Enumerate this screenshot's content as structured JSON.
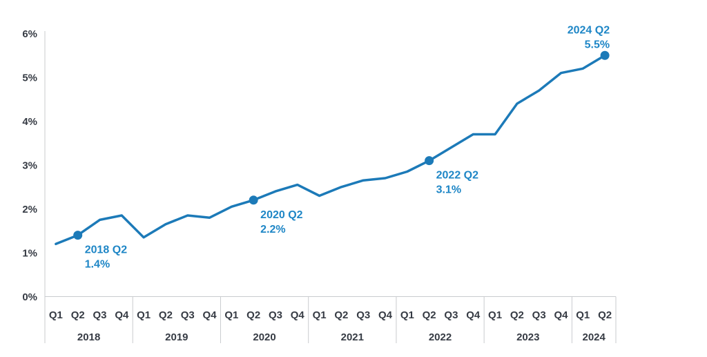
{
  "chart_data": {
    "type": "line",
    "title": "",
    "xlabel": "",
    "ylabel": "",
    "ylim": [
      0,
      6
    ],
    "grid": false,
    "legend_position": "none",
    "y_tick_labels": [
      "0%",
      "1%",
      "2%",
      "3%",
      "4%",
      "5%",
      "6%"
    ],
    "years": [
      {
        "label": "2018",
        "quarters": [
          "Q1",
          "Q2",
          "Q3",
          "Q4"
        ],
        "values": [
          1.2,
          1.4,
          1.75,
          1.85
        ]
      },
      {
        "label": "2019",
        "quarters": [
          "Q1",
          "Q2",
          "Q3",
          "Q4"
        ],
        "values": [
          1.35,
          1.65,
          1.85,
          1.8
        ]
      },
      {
        "label": "2020",
        "quarters": [
          "Q1",
          "Q2",
          "Q3",
          "Q4"
        ],
        "values": [
          2.05,
          2.2,
          2.4,
          2.55
        ]
      },
      {
        "label": "2021",
        "quarters": [
          "Q1",
          "Q2",
          "Q3",
          "Q4"
        ],
        "values": [
          2.3,
          2.5,
          2.65,
          2.7
        ]
      },
      {
        "label": "2022",
        "quarters": [
          "Q1",
          "Q2",
          "Q3",
          "Q4"
        ],
        "values": [
          2.85,
          3.1,
          3.4,
          3.7
        ]
      },
      {
        "label": "2023",
        "quarters": [
          "Q1",
          "Q2",
          "Q3",
          "Q4"
        ],
        "values": [
          3.7,
          4.4,
          4.7,
          5.1
        ]
      },
      {
        "label": "2024",
        "quarters": [
          "Q1",
          "Q2"
        ],
        "values": [
          5.2,
          5.5
        ]
      }
    ],
    "annotations": [
      {
        "point_index": 1,
        "line1": "2018 Q2",
        "line2": "1.4%",
        "value": 1.4,
        "anchor": "below-right"
      },
      {
        "point_index": 9,
        "line1": "2020 Q2",
        "line2": "2.2%",
        "value": 2.2,
        "anchor": "below-right"
      },
      {
        "point_index": 17,
        "line1": "2022 Q2",
        "line2": "3.1%",
        "value": 3.1,
        "anchor": "below-right"
      },
      {
        "point_index": 25,
        "line1": "2024 Q2",
        "line2": "5.5%",
        "value": 5.5,
        "anchor": "above-left"
      }
    ],
    "colors": {
      "line": "#1c7ab8",
      "marker": "#1c7ab8",
      "annotation_text": "#1e86c6",
      "axis_text": "#363b44",
      "axis_line": "#c9cbce",
      "background": "#ffffff"
    }
  }
}
